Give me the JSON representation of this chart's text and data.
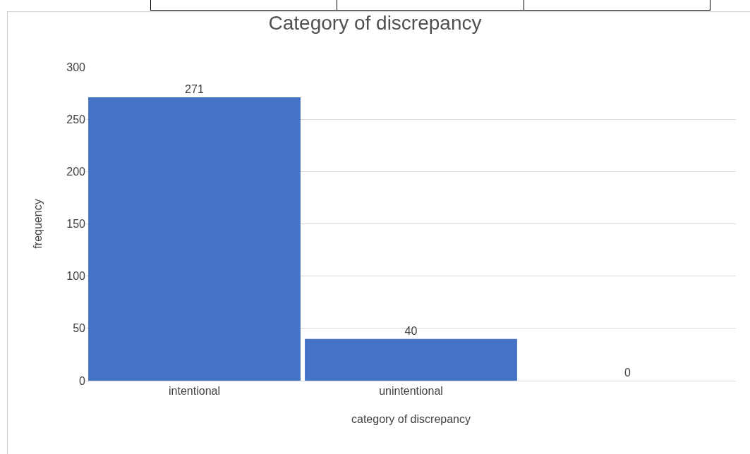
{
  "chart_data": {
    "type": "bar",
    "title": "Category of discrepancy",
    "xlabel": "category of discrepancy",
    "ylabel": "frequency",
    "categories": [
      "intentional",
      "unintentional",
      null
    ],
    "values": [
      271,
      40,
      0
    ],
    "color": "#4472c4",
    "ylim": [
      0,
      300
    ],
    "yticks": [
      0,
      50,
      100,
      150,
      200,
      250,
      300
    ],
    "grid": "y",
    "data_labels": true,
    "legend": false
  }
}
